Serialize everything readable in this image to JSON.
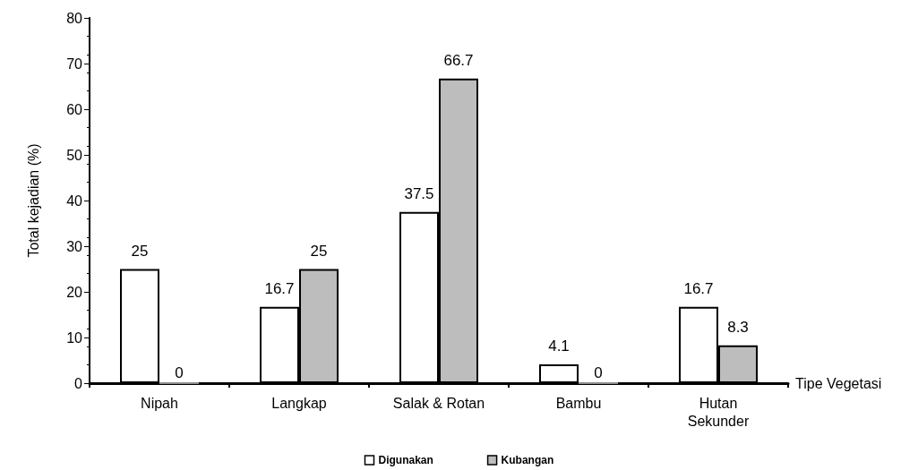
{
  "chart_data": {
    "type": "bar",
    "xlabel": "Tipe Vegetasi",
    "ylabel": "Total kejadian (%)",
    "categories": [
      "Nipah",
      "Langkap",
      "Salak & Rotan",
      "Bambu",
      "Hutan\nSekunder"
    ],
    "series": [
      {
        "name": "Digunakan",
        "color": "#ffffff",
        "values": [
          25,
          16.7,
          37.5,
          4.1,
          16.7
        ]
      },
      {
        "name": "Kubangan",
        "color": "#bdbdbd",
        "values": [
          0,
          25,
          66.7,
          0,
          8.3
        ]
      }
    ],
    "ylim": [
      0,
      80
    ],
    "yticks": [
      0,
      10,
      20,
      30,
      40,
      50,
      60,
      70,
      80
    ],
    "data_labels": true,
    "grid": false,
    "legend": "bottom"
  }
}
